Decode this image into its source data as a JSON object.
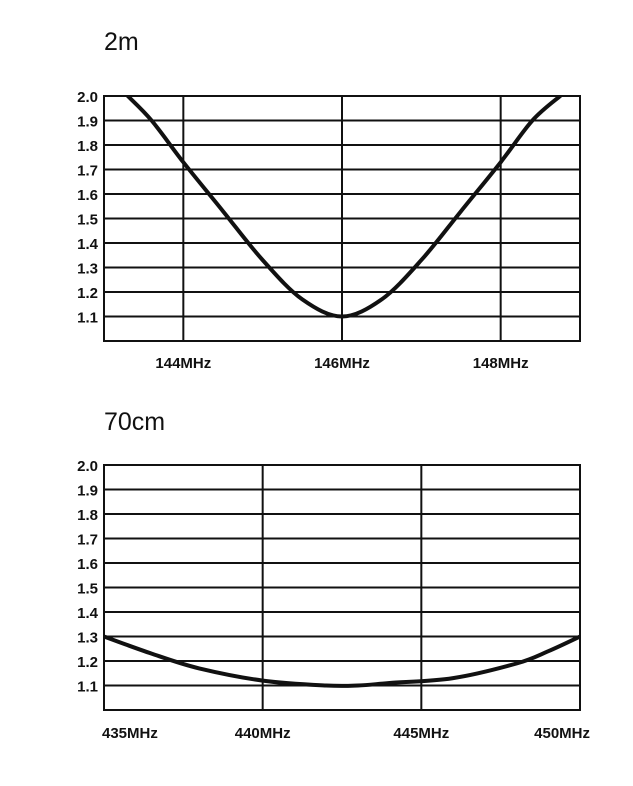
{
  "chart_data": [
    {
      "type": "line",
      "title": "2m",
      "y_ticks": [
        "2.0",
        "1.9",
        "1.8",
        "1.7",
        "1.6",
        "1.5",
        "1.4",
        "1.3",
        "1.2",
        "1.1"
      ],
      "ylim": [
        1.0,
        2.0
      ],
      "x_ticks": [
        "144MHz",
        "146MHz",
        "148MHz"
      ],
      "xlim": [
        143,
        149
      ],
      "vertical_gridlines_at": [
        144,
        146,
        148
      ],
      "grid": true,
      "series": [
        {
          "x": [
            143.3,
            143.6,
            144.0,
            144.5,
            145.0,
            145.5,
            146.0,
            146.5,
            147.0,
            147.5,
            148.0,
            148.4,
            148.75
          ],
          "y": [
            2.0,
            1.9,
            1.73,
            1.53,
            1.33,
            1.17,
            1.1,
            1.17,
            1.33,
            1.53,
            1.73,
            1.9,
            2.0
          ]
        }
      ]
    },
    {
      "type": "line",
      "title": "70cm",
      "y_ticks": [
        "2.0",
        "1.9",
        "1.8",
        "1.7",
        "1.6",
        "1.5",
        "1.4",
        "1.3",
        "1.2",
        "1.1"
      ],
      "ylim": [
        1.0,
        2.0
      ],
      "x_ticks": [
        "435MHz",
        "440MHz",
        "445MHz",
        "450MHz"
      ],
      "xlim": [
        435,
        450
      ],
      "vertical_gridlines_at": [
        440,
        445
      ],
      "grid": true,
      "series": [
        {
          "x": [
            435,
            436.5,
            438,
            440,
            442,
            443,
            444,
            446,
            448,
            449,
            450
          ],
          "y": [
            1.3,
            1.23,
            1.17,
            1.12,
            1.1,
            1.1,
            1.11,
            1.13,
            1.19,
            1.24,
            1.3
          ]
        }
      ]
    }
  ]
}
